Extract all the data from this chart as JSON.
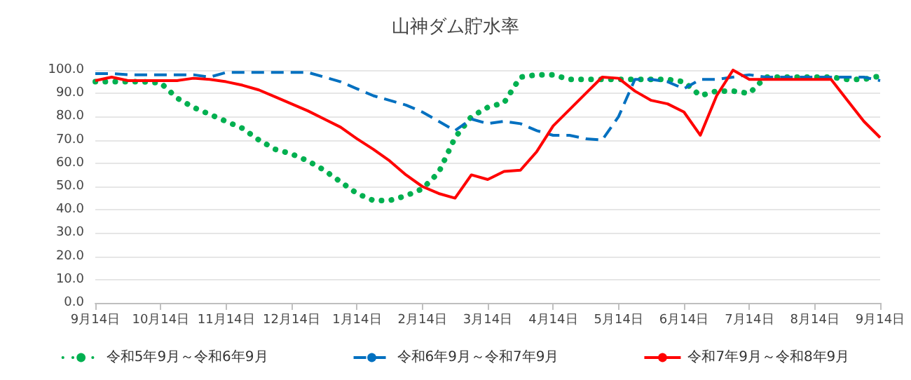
{
  "chart_data": {
    "type": "line",
    "title": "山神ダム貯水率",
    "categories": [
      "9月14日",
      null,
      null,
      null,
      "10月14日",
      null,
      null,
      null,
      "11月14日",
      null,
      null,
      null,
      "12月14日",
      null,
      null,
      null,
      "1月14日",
      null,
      null,
      null,
      "2月14日",
      null,
      null,
      null,
      "3月14日",
      null,
      null,
      null,
      "4月14日",
      null,
      null,
      null,
      "5月14日",
      null,
      null,
      null,
      "6月14日",
      null,
      null,
      null,
      "7月14日",
      null,
      null,
      null,
      "8月14日",
      null,
      null,
      null,
      "9月14日"
    ],
    "series": [
      {
        "name": "令和5年9月～令和6年9月",
        "color": "#00b050",
        "line_style": "dotted",
        "values": [
          95,
          95,
          95,
          95,
          94.5,
          88,
          84,
          81,
          78,
          75,
          70,
          66,
          64,
          61,
          57,
          52,
          47,
          44,
          44,
          46,
          49,
          56,
          71,
          80,
          84,
          86,
          97,
          98,
          98,
          96,
          96,
          96,
          96,
          96,
          96,
          96,
          95,
          89,
          91,
          91,
          90,
          97,
          97,
          97,
          97,
          97,
          96,
          96,
          97.5
        ]
      },
      {
        "name": "令和6年9月～令和7年9月",
        "color": "#0070c0",
        "line_style": "dashed",
        "values": [
          98.5,
          98.5,
          98,
          98,
          98,
          98,
          98,
          97,
          99,
          99,
          99,
          99,
          99,
          99,
          97,
          95,
          92,
          89,
          87,
          85,
          82,
          78,
          74,
          79,
          77,
          78,
          77,
          74,
          72,
          72,
          70.5,
          70,
          80,
          96,
          96,
          95,
          92,
          96,
          96,
          97,
          98,
          97,
          97,
          97,
          97,
          97,
          97,
          97,
          95.5
        ]
      },
      {
        "name": "令和7年9月～令和8年9月",
        "color": "#ff0000",
        "line_style": "solid",
        "values": [
          95.5,
          97,
          95.5,
          95.5,
          95.5,
          95.5,
          96.5,
          96,
          95,
          93.5,
          91.5,
          88.5,
          85.5,
          82.5,
          79,
          75.5,
          70.5,
          66,
          61,
          55,
          50,
          47,
          45,
          55,
          53,
          56.5,
          57,
          65,
          76,
          83,
          90,
          97,
          96.5,
          91,
          87,
          85.5,
          82,
          72,
          89,
          100,
          96,
          96,
          96,
          96,
          96,
          96,
          87,
          78,
          71
        ]
      }
    ],
    "ylim": [
      0,
      100
    ],
    "yticks": [
      {
        "value": 0,
        "label": "0.0"
      },
      {
        "value": 10,
        "label": "10.0"
      },
      {
        "value": 20,
        "label": "20.0"
      },
      {
        "value": 30,
        "label": "30.0"
      },
      {
        "value": 40,
        "label": "40.0"
      },
      {
        "value": 50,
        "label": "50.0"
      },
      {
        "value": 60,
        "label": "60.0"
      },
      {
        "value": 70,
        "label": "70.0"
      },
      {
        "value": 80,
        "label": "80.0"
      },
      {
        "value": 90,
        "label": "90.0"
      },
      {
        "value": 100,
        "label": "100.0"
      }
    ],
    "grid": "y",
    "legend": "bottom",
    "marker": "none"
  }
}
